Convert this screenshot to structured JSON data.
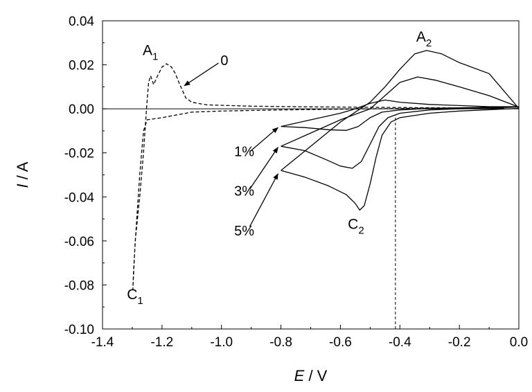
{
  "chart_data": {
    "type": "line",
    "xlabel": {
      "italic": "E",
      "rest": " / V"
    },
    "ylabel": {
      "italic": "I",
      "rest": " / A"
    },
    "xlim": [
      -1.4,
      0.0
    ],
    "ylim": [
      -0.1,
      0.04
    ],
    "x_ticks": [
      -1.4,
      -1.2,
      -1.0,
      -0.8,
      -0.6,
      -0.4,
      -0.2,
      0.0
    ],
    "x_tick_labels": [
      "-1.4",
      "-1.2",
      "-1.0",
      "-0.8",
      "-0.6",
      "-0.4",
      "-0.2",
      "0.0"
    ],
    "y_ticks": [
      0.04,
      0.02,
      0.0,
      -0.02,
      -0.04,
      -0.06,
      -0.08,
      -0.1
    ],
    "y_tick_labels": [
      "0.04",
      "0.02",
      "0.00",
      "-0.02",
      "-0.04",
      "-0.06",
      "-0.08",
      "-0.10"
    ],
    "grid": false,
    "reference_lines": [
      {
        "orientation": "horizontal",
        "y": 0.0,
        "style": "solid"
      },
      {
        "orientation": "vertical",
        "x": -0.415,
        "y_from": -0.1,
        "y_to": -0.003,
        "style": "dashed"
      }
    ],
    "series": [
      {
        "label": "0",
        "style": "dashed",
        "points": [
          [
            -0.05,
            0.0003
          ],
          [
            -0.3,
            0.0003
          ],
          [
            -0.5,
            0.0
          ],
          [
            -0.8,
            -0.0005
          ],
          [
            -1.0,
            -0.001
          ],
          [
            -1.1,
            -0.0015
          ],
          [
            -1.2,
            -0.004
          ],
          [
            -1.25,
            -0.005
          ],
          [
            -1.262,
            -0.01
          ],
          [
            -1.275,
            -0.03
          ],
          [
            -1.285,
            -0.05
          ],
          [
            -1.292,
            -0.065
          ],
          [
            -1.296,
            -0.075
          ],
          [
            -1.298,
            -0.082
          ],
          [
            -1.29,
            -0.06
          ],
          [
            -1.275,
            -0.04
          ],
          [
            -1.262,
            -0.02
          ],
          [
            -1.252,
            0.0
          ],
          [
            -1.245,
            0.012
          ],
          [
            -1.238,
            0.015
          ],
          [
            -1.228,
            0.011
          ],
          [
            -1.215,
            0.015
          ],
          [
            -1.2,
            0.019
          ],
          [
            -1.185,
            0.0205
          ],
          [
            -1.168,
            0.019
          ],
          [
            -1.155,
            0.016
          ],
          [
            -1.14,
            0.011
          ],
          [
            -1.12,
            0.005
          ],
          [
            -1.1,
            0.003
          ],
          [
            -1.05,
            0.0018
          ],
          [
            -0.9,
            0.0012
          ],
          [
            -0.7,
            0.0009
          ],
          [
            -0.5,
            0.0007
          ],
          [
            -0.3,
            0.0005
          ],
          [
            -0.05,
            0.0003
          ]
        ]
      },
      {
        "label": "1%",
        "style": "solid",
        "points": [
          [
            -0.8,
            -0.008
          ],
          [
            -0.72,
            -0.0085
          ],
          [
            -0.64,
            -0.0095
          ],
          [
            -0.58,
            -0.0098
          ],
          [
            -0.54,
            -0.008
          ],
          [
            -0.5,
            -0.004
          ],
          [
            -0.46,
            -0.0015
          ],
          [
            -0.4,
            -0.0005
          ],
          [
            -0.3,
            0.0002
          ],
          [
            -0.2,
            0.0005
          ],
          [
            0.0,
            0.001
          ],
          [
            -0.1,
            0.001
          ],
          [
            -0.2,
            0.0015
          ],
          [
            -0.3,
            0.002
          ],
          [
            -0.4,
            0.003
          ],
          [
            -0.45,
            0.004
          ],
          [
            -0.5,
            0.0025
          ],
          [
            -0.55,
            0.0
          ],
          [
            -0.6,
            -0.002
          ],
          [
            -0.7,
            -0.005
          ],
          [
            -0.8,
            -0.008
          ]
        ]
      },
      {
        "label": "3%",
        "style": "solid",
        "points": [
          [
            -0.8,
            -0.017
          ],
          [
            -0.72,
            -0.019
          ],
          [
            -0.65,
            -0.023
          ],
          [
            -0.6,
            -0.026
          ],
          [
            -0.56,
            -0.027
          ],
          [
            -0.53,
            -0.024
          ],
          [
            -0.5,
            -0.016
          ],
          [
            -0.47,
            -0.008
          ],
          [
            -0.44,
            -0.004
          ],
          [
            -0.4,
            -0.002
          ],
          [
            -0.3,
            -0.0005
          ],
          [
            -0.2,
            0.0
          ],
          [
            0.0,
            0.0008
          ],
          [
            -0.1,
            0.006
          ],
          [
            -0.2,
            0.01
          ],
          [
            -0.28,
            0.013
          ],
          [
            -0.34,
            0.0145
          ],
          [
            -0.4,
            0.012
          ],
          [
            -0.45,
            0.006
          ],
          [
            -0.5,
            0.0
          ],
          [
            -0.6,
            -0.005
          ],
          [
            -0.7,
            -0.011
          ],
          [
            -0.8,
            -0.017
          ]
        ]
      },
      {
        "label": "5%",
        "style": "solid",
        "points": [
          [
            -0.8,
            -0.028
          ],
          [
            -0.72,
            -0.031
          ],
          [
            -0.64,
            -0.035
          ],
          [
            -0.58,
            -0.039
          ],
          [
            -0.55,
            -0.043
          ],
          [
            -0.535,
            -0.046
          ],
          [
            -0.52,
            -0.044
          ],
          [
            -0.5,
            -0.034
          ],
          [
            -0.48,
            -0.022
          ],
          [
            -0.46,
            -0.012
          ],
          [
            -0.43,
            -0.006
          ],
          [
            -0.4,
            -0.004
          ],
          [
            -0.3,
            -0.002
          ],
          [
            -0.2,
            -0.001
          ],
          [
            0.0,
            0.0002
          ],
          [
            -0.1,
            0.016
          ],
          [
            -0.2,
            0.021
          ],
          [
            -0.26,
            0.025
          ],
          [
            -0.31,
            0.0265
          ],
          [
            -0.35,
            0.025
          ],
          [
            -0.4,
            0.018
          ],
          [
            -0.45,
            0.01
          ],
          [
            -0.5,
            0.003
          ],
          [
            -0.6,
            -0.006
          ],
          [
            -0.7,
            -0.017
          ],
          [
            -0.8,
            -0.028
          ]
        ]
      }
    ],
    "annotations": [
      {
        "id": "a1",
        "text": "A",
        "sub": "1",
        "x": -1.265,
        "y": 0.0245
      },
      {
        "id": "c1",
        "text": "C",
        "sub": "1",
        "x": -1.318,
        "y": -0.0865
      },
      {
        "id": "a2",
        "text": "A",
        "sub": "2",
        "x": -0.345,
        "y": 0.0305
      },
      {
        "id": "c2",
        "text": "C",
        "sub": "2",
        "x": -0.575,
        "y": -0.0545
      }
    ],
    "arrow_labels": [
      {
        "id": "zero",
        "text": "0",
        "label_x": -1.003,
        "label_y": 0.0198,
        "line_from": [
          -1.01,
          0.0208
        ],
        "tip": [
          -1.125,
          0.0105
        ]
      },
      {
        "id": "one",
        "text": "1%",
        "label_x": -0.957,
        "label_y": -0.0215,
        "line_from": [
          -0.905,
          -0.0195
        ],
        "tip": [
          -0.81,
          -0.0085
        ]
      },
      {
        "id": "three",
        "text": "3%",
        "label_x": -0.957,
        "label_y": -0.0395,
        "line_from": [
          -0.905,
          -0.0365
        ],
        "tip": [
          -0.81,
          -0.0175
        ]
      },
      {
        "id": "five",
        "text": "5%",
        "label_x": -0.957,
        "label_y": -0.0575,
        "line_from": [
          -0.905,
          -0.0535
        ],
        "tip": [
          -0.81,
          -0.0295
        ]
      }
    ]
  }
}
